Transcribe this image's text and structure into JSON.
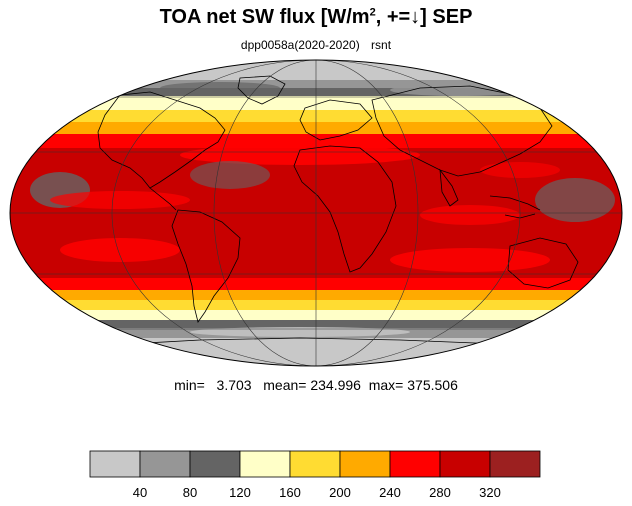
{
  "title": {
    "prefix": "TOA net SW flux [W/m",
    "sup": "2",
    "suffix": ", +=↓]  SEP"
  },
  "subtitle": {
    "run": "dpp0058a(2020-2020)",
    "variable": "rsnt"
  },
  "stats": {
    "min_label": "min=",
    "min": "3.703",
    "mean_label": "mean=",
    "mean": "234.996",
    "max_label": "max=",
    "max": "375.506"
  },
  "colorbar": {
    "colors": [
      "#c8c8c8",
      "#969696",
      "#646464",
      "#ffffc8",
      "#ffdc32",
      "#ffaa00",
      "#ff0000",
      "#c80000",
      "#9c2020"
    ],
    "ticks": [
      "40",
      "80",
      "120",
      "160",
      "200",
      "240",
      "280",
      "320"
    ]
  }
}
